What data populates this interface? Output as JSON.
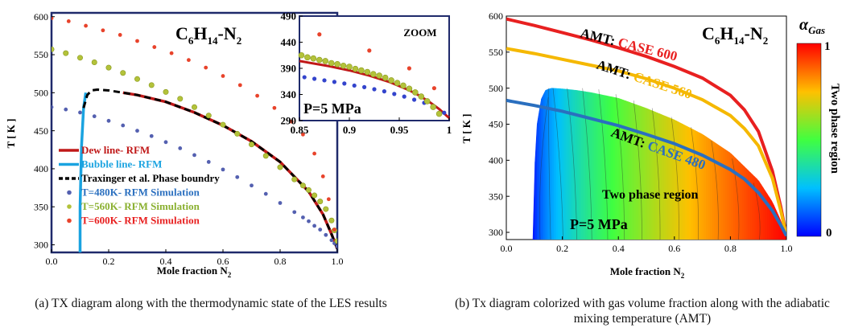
{
  "colors": {
    "frame_navy": "#1f2a6b",
    "dew_line": "#c01818",
    "bubble_line": "#1aa3e0",
    "traxinger": "#000000",
    "t480": "#5460b0",
    "t560": "#b3c23a",
    "t600": "#e8432b",
    "amt600": "#e82020",
    "amt560": "#f5b800",
    "amt480": "#2a6fbf"
  },
  "chart_data": [
    {
      "id": "a",
      "type": "scatter",
      "title": "C6H14-N2",
      "title_parts": {
        "c": "C",
        "s6": "6",
        "h": "H",
        "s14": "14",
        "n2": "-N",
        "s2": "2"
      },
      "xlabel": "Mole fraction N",
      "xlabel_sub": "2",
      "ylabel": "T [ K ]",
      "xlim": [
        0,
        1
      ],
      "ylim": [
        290,
        605
      ],
      "xticks": [
        "0.0",
        "0.2",
        "0.4",
        "0.6",
        "0.8",
        "1.0"
      ],
      "yticks": [
        "300",
        "350",
        "400",
        "450",
        "500",
        "550",
        "600"
      ],
      "legend": [
        "Dew line- RFM",
        "Bubble line- RFM",
        "Traxinger et al. Phase boundry",
        "T=480K- RFM Simulation",
        "T=560K- RFM Simulation",
        "T=600K- RFM Simulation"
      ],
      "legend_placement": "lower-left",
      "annotation_pressure": "",
      "caption": "(a) TX diagram along with the thermodynamic state of the LES results",
      "series": [
        {
          "name": "Dew line- RFM",
          "style": "line",
          "color": "#c01818",
          "x": [
            0.25,
            0.3,
            0.4,
            0.5,
            0.6,
            0.7,
            0.8,
            0.9,
            0.95,
            0.98,
            1.0
          ],
          "y": [
            500,
            497,
            488,
            474,
            457,
            436,
            409,
            370,
            340,
            314,
            295
          ]
        },
        {
          "name": "Bubble line- RFM",
          "style": "line",
          "color": "#1aa3e0",
          "x": [
            0.1,
            0.1,
            0.105,
            0.112,
            0.12
          ],
          "y": [
            290,
            350,
            430,
            480,
            500
          ]
        },
        {
          "name": "Traxinger et al. Phase boundry",
          "style": "dash",
          "color": "#000000",
          "x": [
            0.112,
            0.125,
            0.14,
            0.16,
            0.2,
            0.25,
            0.3,
            0.4,
            0.5,
            0.6,
            0.7,
            0.8,
            0.9,
            0.95,
            0.98,
            1.0
          ],
          "y": [
            480,
            497,
            503,
            504,
            503,
            500,
            497,
            488,
            474,
            457,
            436,
            409,
            370,
            340,
            314,
            295
          ]
        },
        {
          "name": "T=480K- RFM Simulation",
          "style": "dots",
          "color": "#5460b0",
          "x": [
            0.0,
            0.05,
            0.1,
            0.15,
            0.2,
            0.25,
            0.3,
            0.35,
            0.4,
            0.45,
            0.5,
            0.55,
            0.6,
            0.65,
            0.7,
            0.75,
            0.8,
            0.85,
            0.88,
            0.9,
            0.92,
            0.94,
            0.96,
            0.98,
            0.99,
            1.0
          ],
          "y": [
            481,
            478,
            474,
            469,
            463,
            457,
            450,
            443,
            435,
            427,
            418,
            409,
            399,
            389,
            378,
            367,
            355,
            343,
            336,
            331,
            325,
            320,
            313,
            306,
            302,
            298
          ]
        },
        {
          "name": "T=560K- RFM Simulation",
          "style": "dots",
          "color": "#b3c23a",
          "x": [
            0.0,
            0.05,
            0.1,
            0.15,
            0.2,
            0.25,
            0.3,
            0.35,
            0.4,
            0.45,
            0.5,
            0.55,
            0.6,
            0.65,
            0.7,
            0.75,
            0.8,
            0.85,
            0.88,
            0.9,
            0.92,
            0.94,
            0.96,
            0.98,
            0.99,
            1.0
          ],
          "y": [
            557,
            552,
            546,
            540,
            533,
            526,
            518,
            510,
            501,
            492,
            481,
            470,
            458,
            446,
            432,
            417,
            402,
            386,
            378,
            372,
            365,
            357,
            347,
            332,
            319,
            305
          ]
        },
        {
          "name": "T=600K- RFM Simulation",
          "style": "dots",
          "color": "#e8432b",
          "x": [
            0.0,
            0.06,
            0.12,
            0.18,
            0.24,
            0.3,
            0.36,
            0.42,
            0.48,
            0.54,
            0.6,
            0.66,
            0.72,
            0.78,
            0.84,
            0.88,
            0.92,
            0.95,
            0.97,
            0.99
          ],
          "y": [
            598,
            594,
            588,
            582,
            576,
            568,
            560,
            552,
            543,
            533,
            522,
            510,
            496,
            480,
            462,
            445,
            420,
            390,
            360,
            320
          ]
        }
      ]
    },
    {
      "id": "a-zoom",
      "type": "scatter",
      "title": "ZOOM",
      "xlim": [
        0.85,
        1.0
      ],
      "ylim": [
        290,
        490
      ],
      "xticks": [
        "0.85",
        "0.9",
        "0.95",
        "1"
      ],
      "yticks": [
        "290",
        "340",
        "390",
        "440",
        "490"
      ],
      "annotation_pressure": "P=5 MPa",
      "series": [
        {
          "name": "Dew line- RFM",
          "style": "line",
          "color": "#c01818",
          "x": [
            0.85,
            0.88,
            0.9,
            0.92,
            0.94,
            0.96,
            0.97,
            0.98,
            0.99,
            1.0
          ],
          "y": [
            404,
            394,
            386,
            376,
            364,
            348,
            338,
            326,
            312,
            295
          ]
        },
        {
          "name": "T=480K- RFM Simulation",
          "style": "dots",
          "color": "#3344cc",
          "x": [
            0.855,
            0.865,
            0.875,
            0.885,
            0.895,
            0.905,
            0.915,
            0.925,
            0.935,
            0.945,
            0.955,
            0.965,
            0.975,
            0.985,
            0.995
          ],
          "y": [
            373,
            370,
            367,
            364,
            361,
            357,
            354,
            350,
            346,
            341,
            336,
            330,
            324,
            316,
            305
          ]
        },
        {
          "name": "T=560K- RFM Simulation",
          "style": "dots",
          "color": "#b3c23a",
          "x": [
            0.852,
            0.858,
            0.864,
            0.87,
            0.876,
            0.882,
            0.888,
            0.894,
            0.9,
            0.906,
            0.912,
            0.918,
            0.924,
            0.93,
            0.936,
            0.942,
            0.948,
            0.954,
            0.96,
            0.966,
            0.972,
            0.978,
            0.984,
            0.99
          ],
          "y": [
            415,
            411,
            409,
            406,
            404,
            400,
            398,
            395,
            393,
            389,
            386,
            383,
            379,
            376,
            372,
            367,
            362,
            357,
            351,
            344,
            336,
            327,
            316,
            303
          ]
        },
        {
          "name": "T=600K- RFM Simulation",
          "style": "dots",
          "color": "#e8432b",
          "x": [
            0.87,
            0.92,
            0.96,
            0.985
          ],
          "y": [
            455,
            424,
            390,
            352
          ]
        }
      ]
    },
    {
      "id": "b",
      "type": "heatmap",
      "title": "C6H14-N2",
      "title_parts": {
        "c": "C",
        "s6": "6",
        "h": "H",
        "s14": "14",
        "n2": "-N",
        "s2": "2"
      },
      "xlabel": "Mole fraction N",
      "xlabel_sub": "2",
      "ylabel": "T [ K ]",
      "xlim": [
        0,
        1
      ],
      "ylim": [
        290,
        600
      ],
      "xticks": [
        "0.0",
        "0.2",
        "0.4",
        "0.6",
        "0.8",
        "1.0"
      ],
      "yticks": [
        "300",
        "350",
        "400",
        "450",
        "500",
        "550",
        "600"
      ],
      "colorbar": {
        "label_alpha": "α",
        "label_sub": "Gas",
        "min": "0",
        "max": "1",
        "side_label": "Two phase region"
      },
      "region_label": "Two phase region",
      "annotation_pressure": "P=5 MPa",
      "amt_labels": [
        {
          "prefix": "AMT: ",
          "case": "CASE 600",
          "color": "#e82020"
        },
        {
          "prefix": "AMT: ",
          "case": "CASE 560",
          "color": "#f5b800"
        },
        {
          "prefix": "AMT: ",
          "case": "CASE 480",
          "color": "#2a6fbf"
        }
      ],
      "phase_boundary": {
        "x": [
          0.095,
          0.1,
          0.11,
          0.125,
          0.14,
          0.16,
          0.2,
          0.25,
          0.3,
          0.4,
          0.5,
          0.6,
          0.7,
          0.8,
          0.9,
          0.95,
          0.98,
          1.0
        ],
        "y": [
          290,
          380,
          450,
          485,
          497,
          500,
          499,
          497,
          494,
          486,
          472,
          456,
          436,
          410,
          372,
          342,
          316,
          295
        ]
      },
      "series": [
        {
          "name": "AMT: CASE 600",
          "color": "#e82020",
          "x": [
            0.0,
            0.1,
            0.2,
            0.3,
            0.4,
            0.5,
            0.6,
            0.7,
            0.8,
            0.85,
            0.9,
            0.95,
            0.98,
            1.0
          ],
          "y": [
            596,
            587,
            577,
            567,
            556,
            544,
            530,
            514,
            490,
            470,
            440,
            385,
            335,
            295
          ]
        },
        {
          "name": "AMT: CASE 560",
          "color": "#f5b800",
          "x": [
            0.0,
            0.1,
            0.2,
            0.3,
            0.4,
            0.5,
            0.6,
            0.7,
            0.8,
            0.85,
            0.9,
            0.95,
            0.98,
            1.0
          ],
          "y": [
            555,
            548,
            540,
            532,
            524,
            513,
            500,
            484,
            462,
            444,
            420,
            375,
            330,
            295
          ]
        },
        {
          "name": "AMT: CASE 480",
          "color": "#2a6fbf",
          "x": [
            0.0,
            0.1,
            0.2,
            0.3,
            0.4,
            0.5,
            0.6,
            0.7,
            0.8,
            0.85,
            0.9,
            0.95,
            0.98,
            1.0
          ],
          "y": [
            483,
            476,
            468,
            458,
            448,
            436,
            423,
            407,
            387,
            374,
            355,
            330,
            310,
            295
          ]
        }
      ],
      "caption": "(b) Tx diagram colorized with gas volume fraction along with the adiabatic mixing temperature (AMT)"
    }
  ]
}
